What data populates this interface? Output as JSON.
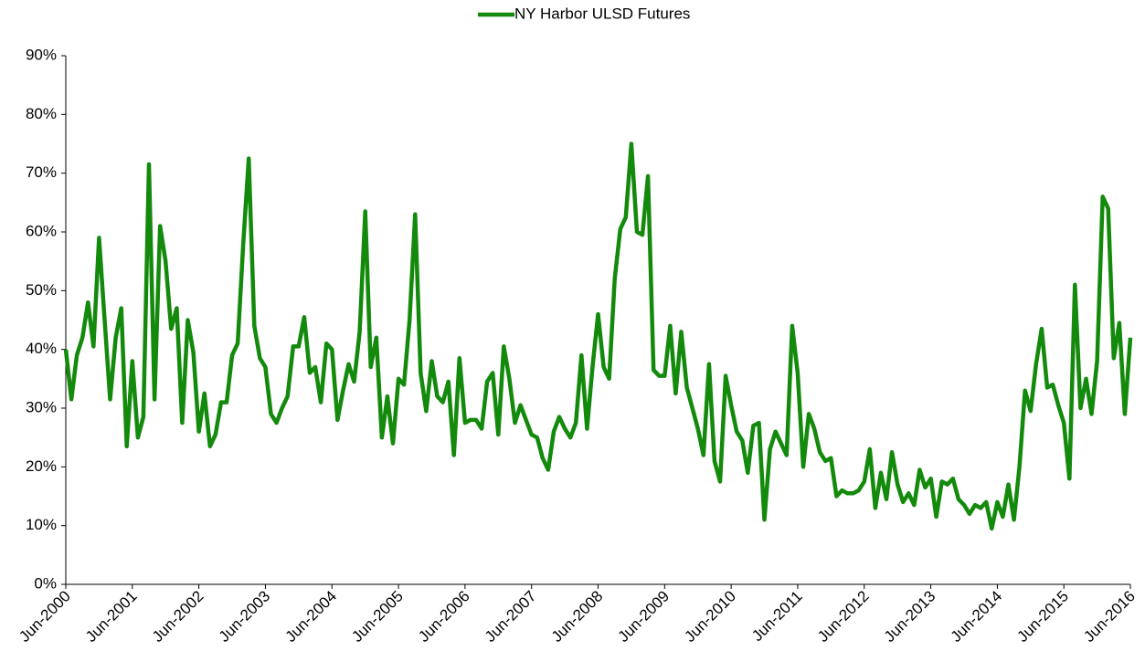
{
  "chart_data": {
    "type": "line",
    "categories": [
      "Jun-2000",
      null,
      null,
      null,
      null,
      null,
      null,
      null,
      null,
      null,
      null,
      null,
      "Jun-2001",
      null,
      null,
      null,
      null,
      null,
      null,
      null,
      null,
      null,
      null,
      null,
      "Jun-2002",
      null,
      null,
      null,
      null,
      null,
      null,
      null,
      null,
      null,
      null,
      null,
      "Jun-2003",
      null,
      null,
      null,
      null,
      null,
      null,
      null,
      null,
      null,
      null,
      null,
      "Jun-2004",
      null,
      null,
      null,
      null,
      null,
      null,
      null,
      null,
      null,
      null,
      null,
      "Jun-2005",
      null,
      null,
      null,
      null,
      null,
      null,
      null,
      null,
      null,
      null,
      null,
      "Jun-2006",
      null,
      null,
      null,
      null,
      null,
      null,
      null,
      null,
      null,
      null,
      null,
      "Jun-2007",
      null,
      null,
      null,
      null,
      null,
      null,
      null,
      null,
      null,
      null,
      null,
      "Jun-2008",
      null,
      null,
      null,
      null,
      null,
      null,
      null,
      null,
      null,
      null,
      null,
      "Jun-2009",
      null,
      null,
      null,
      null,
      null,
      null,
      null,
      null,
      null,
      null,
      null,
      "Jun-2010",
      null,
      null,
      null,
      null,
      null,
      null,
      null,
      null,
      null,
      null,
      null,
      "Jun-2011",
      null,
      null,
      null,
      null,
      null,
      null,
      null,
      null,
      null,
      null,
      null,
      "Jun-2012",
      null,
      null,
      null,
      null,
      null,
      null,
      null,
      null,
      null,
      null,
      null,
      "Jun-2013",
      null,
      null,
      null,
      null,
      null,
      null,
      null,
      null,
      null,
      null,
      null,
      "Jun-2014",
      null,
      null,
      null,
      null,
      null,
      null,
      null,
      null,
      null,
      null,
      null,
      "Jun-2015",
      null,
      null,
      null,
      null,
      null,
      null,
      null,
      null,
      null,
      null,
      null,
      "Jun-2016"
    ],
    "series": [
      {
        "name": "NY Harbor ULSD Futures",
        "color": "#138a0c",
        "values": [
          40,
          31.5,
          39,
          42,
          48,
          40.5,
          59,
          45,
          31.5,
          42,
          47,
          23.5,
          38,
          25,
          28.5,
          71.5,
          31.5,
          61,
          55,
          43.5,
          47,
          27.5,
          45,
          39.5,
          26,
          32.5,
          23.5,
          25.5,
          31,
          31,
          39,
          41,
          58,
          72.5,
          44,
          38.5,
          37,
          29,
          27.5,
          30,
          32,
          40.5,
          40.5,
          45.5,
          36,
          37,
          31,
          41,
          40,
          28,
          33,
          37.5,
          34.5,
          43,
          63.5,
          37,
          42,
          25,
          32,
          24,
          35,
          34,
          45,
          63,
          36,
          29.5,
          38,
          32,
          31,
          34.5,
          22,
          38.5,
          27.5,
          28,
          28,
          26.5,
          34.5,
          36,
          25.5,
          40.5,
          35,
          27.5,
          30.5,
          28,
          25.5,
          25,
          21.5,
          19.5,
          26,
          28.5,
          26.5,
          25,
          27.5,
          39,
          26.5,
          37,
          46,
          37,
          35,
          52,
          60.5,
          62.5,
          75,
          60,
          59.5,
          69.5,
          36.5,
          35.5,
          35.5,
          44,
          32.5,
          43,
          33.5,
          30,
          26.5,
          22,
          37.5,
          21,
          17.5,
          35.5,
          30.5,
          26,
          24.5,
          19,
          27,
          27.5,
          11,
          23,
          26,
          24,
          22,
          44,
          36,
          20,
          29,
          26.5,
          22.5,
          21,
          21.5,
          15,
          16,
          15.5,
          15.5,
          16,
          17.5,
          23,
          13,
          19,
          14.5,
          22.5,
          17,
          14,
          15.5,
          13.5,
          19.5,
          16.5,
          18,
          11.5,
          17.5,
          17,
          18,
          14.5,
          13.5,
          12,
          13.5,
          13,
          14,
          9.5,
          14,
          11.5,
          17,
          11,
          20,
          33,
          29.5,
          37.5,
          43.5,
          33.5,
          34,
          30.5,
          27.5,
          18,
          51,
          30,
          35,
          29,
          38,
          66,
          64,
          38.5,
          44.5,
          29,
          42
        ]
      }
    ],
    "ylim": [
      0,
      90
    ],
    "yticks": [
      {
        "value": 0,
        "label": "0%"
      },
      {
        "value": 10,
        "label": "10%"
      },
      {
        "value": 20,
        "label": "20%"
      },
      {
        "value": 30,
        "label": "30%"
      },
      {
        "value": 40,
        "label": "40%"
      },
      {
        "value": 50,
        "label": "50%"
      },
      {
        "value": 60,
        "label": "60%"
      },
      {
        "value": 70,
        "label": "70%"
      },
      {
        "value": 80,
        "label": "80%"
      },
      {
        "value": 90,
        "label": "90%"
      }
    ],
    "legend": "top",
    "grid": false
  }
}
